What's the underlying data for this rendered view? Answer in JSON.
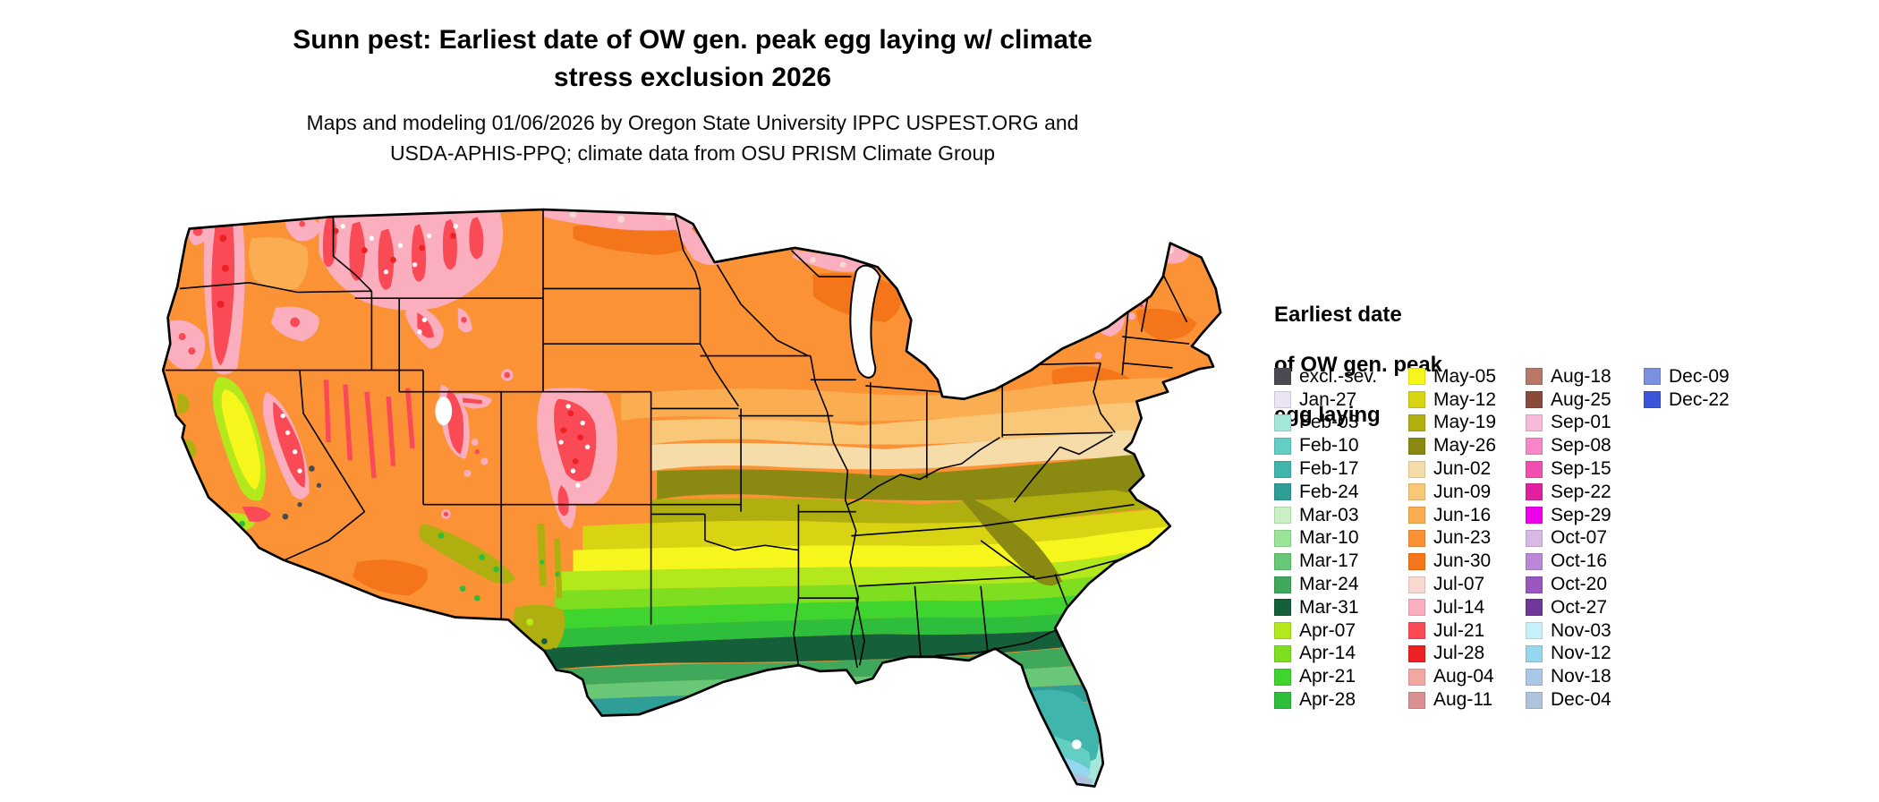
{
  "title": {
    "line1": "Sunn pest: Earliest date of OW gen. peak egg laying w/ climate",
    "line2": "stress exclusion 2026"
  },
  "subtitle": {
    "line1": "Maps and modeling 01/06/2026 by Oregon State University IPPC USPEST.ORG and",
    "line2": "USDA-APHIS-PPQ; climate data from OSU PRISM Climate Group"
  },
  "legend": {
    "title_lines": [
      "Earliest date",
      "of OW gen. peak",
      "egg laying"
    ],
    "columns": [
      [
        {
          "label": "excl.-sev.",
          "color": "#4A4A55"
        },
        {
          "label": "Jan-27",
          "color": "#E9E5F2"
        },
        {
          "label": "Feb-03",
          "color": "#A5E7DB"
        },
        {
          "label": "Feb-10",
          "color": "#63CEC4"
        },
        {
          "label": "Feb-17",
          "color": "#3FB5AC"
        },
        {
          "label": "Feb-24",
          "color": "#2E9E96"
        },
        {
          "label": "Mar-03",
          "color": "#C9F2C2"
        },
        {
          "label": "Mar-10",
          "color": "#9AE59A"
        },
        {
          "label": "Mar-17",
          "color": "#68C878"
        },
        {
          "label": "Mar-24",
          "color": "#3FA85A"
        },
        {
          "label": "Mar-31",
          "color": "#15603A"
        },
        {
          "label": "Apr-07",
          "color": "#B2E81C"
        },
        {
          "label": "Apr-14",
          "color": "#7FDE20"
        },
        {
          "label": "Apr-21",
          "color": "#3FD42E"
        },
        {
          "label": "Apr-28",
          "color": "#2EBE3C"
        }
      ],
      [
        {
          "label": "May-05",
          "color": "#F6F61C"
        },
        {
          "label": "May-12",
          "color": "#D8D414"
        },
        {
          "label": "May-19",
          "color": "#AFAF10"
        },
        {
          "label": "May-26",
          "color": "#8A8A12"
        },
        {
          "label": "Jun-02",
          "color": "#F5DCA8"
        },
        {
          "label": "Jun-09",
          "color": "#F8C878"
        },
        {
          "label": "Jun-16",
          "color": "#FBAD52"
        },
        {
          "label": "Jun-23",
          "color": "#FB9236"
        },
        {
          "label": "Jun-30",
          "color": "#F5761A"
        },
        {
          "label": "Jul-07",
          "color": "#F8D8D0"
        },
        {
          "label": "Jul-14",
          "color": "#FBAEBE"
        },
        {
          "label": "Jul-21",
          "color": "#F94A56"
        },
        {
          "label": "Jul-28",
          "color": "#ED2024"
        },
        {
          "label": "Aug-04",
          "color": "#F0A8A0"
        },
        {
          "label": "Aug-11",
          "color": "#D89090"
        }
      ],
      [
        {
          "label": "Aug-18",
          "color": "#B87868"
        },
        {
          "label": "Aug-25",
          "color": "#8A4A3A"
        },
        {
          "label": "Sep-01",
          "color": "#F8B8D8"
        },
        {
          "label": "Sep-08",
          "color": "#F887C8"
        },
        {
          "label": "Sep-15",
          "color": "#F04FB0"
        },
        {
          "label": "Sep-22",
          "color": "#E020A0"
        },
        {
          "label": "Sep-29",
          "color": "#EE00EE"
        },
        {
          "label": "Oct-07",
          "color": "#D9B8E8"
        },
        {
          "label": "Oct-16",
          "color": "#BB88D8"
        },
        {
          "label": "Oct-20",
          "color": "#9858C0"
        },
        {
          "label": "Oct-27",
          "color": "#703898"
        },
        {
          "label": "Nov-03",
          "color": "#C8F0F8"
        },
        {
          "label": "Nov-12",
          "color": "#96D7F0"
        },
        {
          "label": "Nov-18",
          "color": "#A9C8E8"
        },
        {
          "label": "Dec-04",
          "color": "#AFC3DC"
        }
      ],
      [
        {
          "label": "Dec-09",
          "color": "#7A90E0"
        },
        {
          "label": "Dec-22",
          "color": "#3A55D9"
        }
      ]
    ]
  }
}
